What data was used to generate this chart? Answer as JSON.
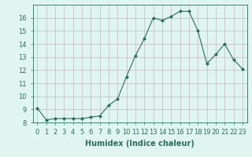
{
  "x": [
    0,
    1,
    2,
    3,
    4,
    5,
    6,
    7,
    8,
    9,
    10,
    11,
    12,
    13,
    14,
    15,
    16,
    17,
    18,
    19,
    20,
    21,
    22,
    23
  ],
  "y": [
    9.1,
    8.2,
    8.3,
    8.3,
    8.3,
    8.3,
    8.4,
    8.5,
    9.3,
    9.8,
    11.5,
    13.1,
    14.4,
    16.0,
    15.8,
    16.1,
    16.5,
    16.5,
    15.0,
    12.5,
    13.2,
    14.0,
    12.8,
    12.1
  ],
  "line_color": "#2e6b5e",
  "marker": "D",
  "marker_size": 2.0,
  "bg_color": "#e0f5f0",
  "grid_color": "#c9b8b8",
  "xlabel": "Humidex (Indice chaleur)",
  "ylim": [
    8,
    17
  ],
  "xlim": [
    -0.5,
    23.5
  ],
  "yticks": [
    8,
    9,
    10,
    11,
    12,
    13,
    14,
    15,
    16
  ],
  "xtick_labels": [
    "0",
    "1",
    "2",
    "3",
    "4",
    "5",
    "6",
    "7",
    "8",
    "9",
    "10",
    "11",
    "12",
    "13",
    "14",
    "15",
    "16",
    "17",
    "18",
    "19",
    "20",
    "21",
    "22",
    "23"
  ],
  "xlabel_fontsize": 7,
  "tick_fontsize": 6,
  "linewidth": 0.8
}
